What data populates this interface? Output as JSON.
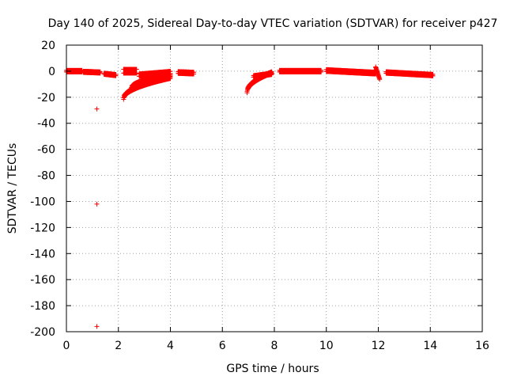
{
  "chart_data": {
    "type": "scatter",
    "title": "Day 140 of 2025, Sidereal Day-to-day VTEC variation (SDTVAR) for receiver p427",
    "xlabel": "GPS time / hours",
    "ylabel": "SDTVAR / TECUs",
    "xlim": [
      0,
      16
    ],
    "ylim": [
      -200,
      20
    ],
    "grid": true,
    "marker": "+",
    "marker_color": "#ff0000",
    "x_ticks": [
      0,
      2,
      4,
      6,
      8,
      10,
      12,
      14,
      16
    ],
    "y_ticks": [
      20,
      0,
      -20,
      -40,
      -60,
      -80,
      -100,
      -120,
      -140,
      -160,
      -180,
      -200
    ],
    "x_tick_labels": [
      "0",
      "2",
      "4",
      "6",
      "8",
      "10",
      "12",
      "14",
      "16"
    ],
    "y_tick_labels": [
      "20",
      "0",
      "-20",
      "-40",
      "-60",
      "-80",
      "-100",
      "-120",
      "-140",
      "-160",
      "-180",
      "-200"
    ],
    "outliers": [
      {
        "x": 1.17,
        "y": -29
      },
      {
        "x": 1.17,
        "y": -102
      },
      {
        "x": 1.17,
        "y": -196
      }
    ],
    "segments": [
      {
        "x_start": 0.0,
        "x_end": 0.6,
        "y_start": 0,
        "y_end": 0,
        "spread": 1.0
      },
      {
        "x_start": 0.65,
        "x_end": 1.3,
        "y_start": -0.5,
        "y_end": -1,
        "spread": 0.8
      },
      {
        "x_start": 1.45,
        "x_end": 1.9,
        "y_start": -2,
        "y_end": -3,
        "spread": 0.8
      },
      {
        "x_start": 2.2,
        "x_end": 2.7,
        "y_start": 0,
        "y_end": 0,
        "spread": 2.5
      },
      {
        "x_start": 2.2,
        "x_end": 4.0,
        "y_start": -21,
        "y_end": -5,
        "spread": 1.0,
        "curve": true
      },
      {
        "x_start": 2.5,
        "x_end": 4.0,
        "y_start": -13,
        "y_end": -3,
        "spread": 1.0,
        "curve": true
      },
      {
        "x_start": 2.8,
        "x_end": 4.0,
        "y_start": -3,
        "y_end": -1,
        "spread": 1.5
      },
      {
        "x_start": 4.3,
        "x_end": 4.9,
        "y_start": -1,
        "y_end": -1.5,
        "spread": 1.2
      },
      {
        "x_start": 6.95,
        "x_end": 7.9,
        "y_start": -16,
        "y_end": -1,
        "spread": 1.0,
        "curve": true
      },
      {
        "x_start": 7.2,
        "x_end": 7.9,
        "y_start": -4,
        "y_end": -2,
        "spread": 1.0
      },
      {
        "x_start": 8.2,
        "x_end": 9.8,
        "y_start": 0,
        "y_end": 0,
        "spread": 1.0
      },
      {
        "x_start": 10.0,
        "x_end": 11.9,
        "y_start": 0.5,
        "y_end": -1.5,
        "spread": 1.2
      },
      {
        "x_start": 11.9,
        "x_end": 12.05,
        "y_start": 3,
        "y_end": -6,
        "spread": 0.5
      },
      {
        "x_start": 12.3,
        "x_end": 14.1,
        "y_start": -1,
        "y_end": -3,
        "spread": 1.0
      }
    ]
  }
}
